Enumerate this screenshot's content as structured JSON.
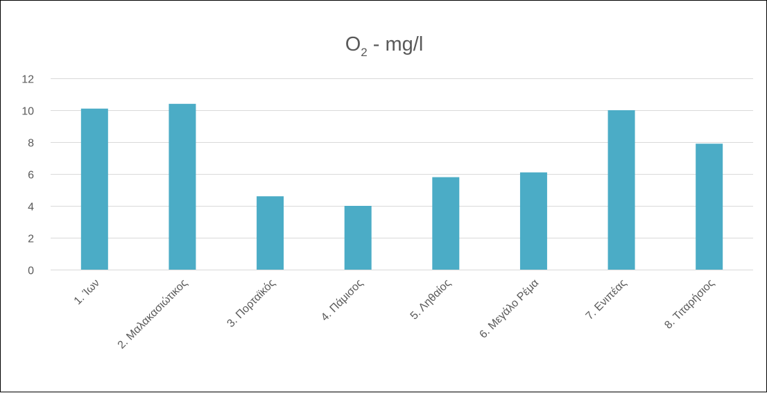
{
  "chart_data": {
    "type": "bar",
    "title": {
      "main": "O",
      "subscript": "2",
      "rest": " - mg/l"
    },
    "categories": [
      "1. Ίων",
      "2. Μαλακασιώτικος",
      "3. Πορταϊκός",
      "4. Πάμισος",
      "5. Ληθαίος",
      "6. Μεγάλο Ρέμα",
      "7. Ενιπέας",
      "8. Τιταρήσιος"
    ],
    "values": [
      10.1,
      10.4,
      4.6,
      4.0,
      5.8,
      6.1,
      10.0,
      7.9
    ],
    "xlabel": "",
    "ylabel": "",
    "ylim": [
      0,
      12
    ],
    "yticks": [
      0,
      2,
      4,
      6,
      8,
      10,
      12
    ],
    "grid": true,
    "legend": "none",
    "bar_color": "#4bacc6",
    "gridline_color": "#d9d9d9",
    "text_color": "#595959"
  }
}
